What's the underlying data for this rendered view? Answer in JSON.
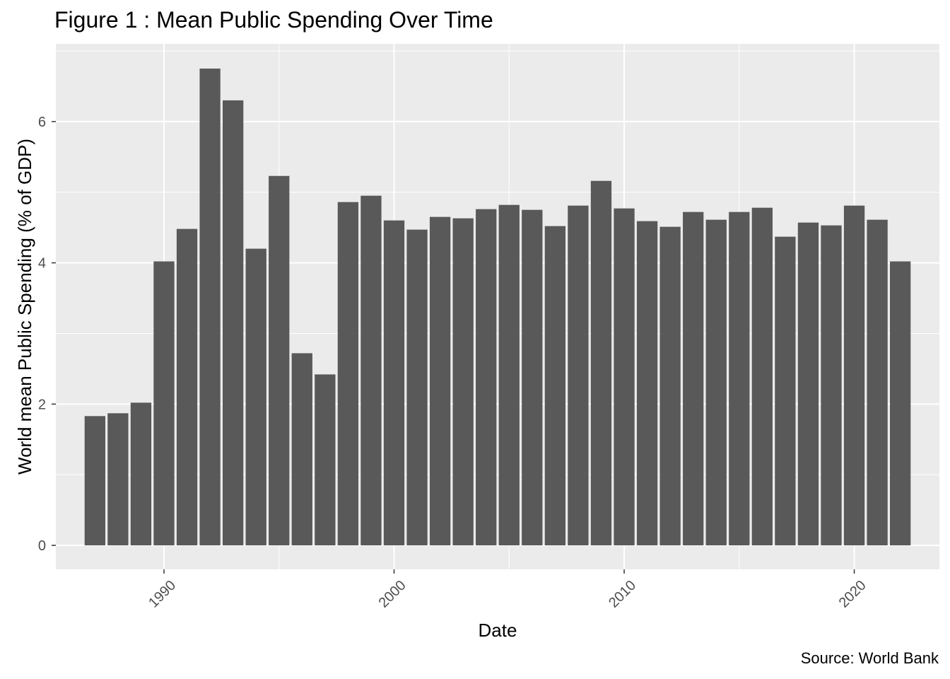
{
  "chart_data": {
    "type": "bar",
    "title": "Figure 1 : Mean Public Spending Over Time",
    "caption": "Source: World Bank",
    "xlabel": "Date",
    "ylabel": "World mean Public Spending (% of GDP)",
    "x": [
      1987,
      1988,
      1989,
      1990,
      1991,
      1992,
      1993,
      1994,
      1995,
      1996,
      1997,
      1998,
      1999,
      2000,
      2001,
      2002,
      2003,
      2004,
      2005,
      2006,
      2007,
      2008,
      2009,
      2010,
      2011,
      2012,
      2013,
      2014,
      2015,
      2016,
      2017,
      2018,
      2019,
      2020,
      2021,
      2022
    ],
    "values": [
      1.83,
      1.87,
      2.02,
      4.02,
      4.48,
      6.75,
      6.3,
      4.2,
      5.23,
      2.72,
      2.42,
      4.86,
      4.95,
      4.6,
      4.47,
      4.65,
      4.63,
      4.76,
      4.82,
      4.75,
      4.52,
      4.81,
      5.16,
      4.77,
      4.59,
      4.51,
      4.72,
      4.61,
      4.72,
      4.78,
      4.37,
      4.57,
      4.53,
      4.81,
      4.61,
      4.02
    ],
    "xticks": [
      1990,
      2000,
      2010,
      2020
    ],
    "yticks": [
      0,
      2,
      4,
      6
    ],
    "xlim": [
      1985.3,
      2023.7
    ],
    "ylim": [
      -0.34,
      7.1
    ],
    "grid": true,
    "bar_color": "#595959",
    "panel_color": "#ebebeb",
    "grid_color": "#ffffff"
  }
}
